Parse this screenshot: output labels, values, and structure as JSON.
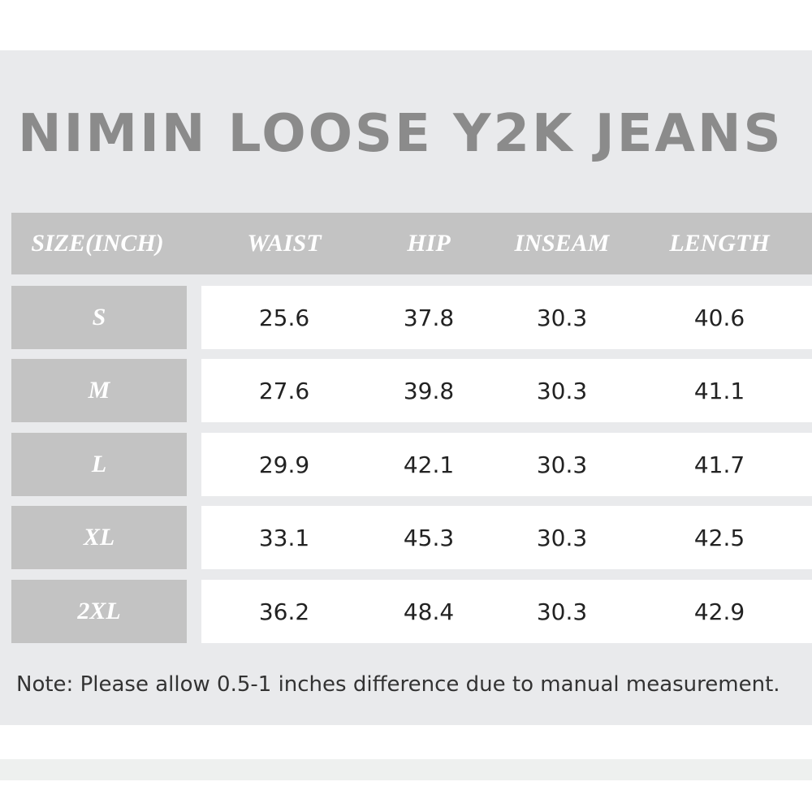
{
  "title": "NIMIN LOOSE Y2K JEANS",
  "table": {
    "header": [
      "SIZE(INCH)",
      "WAIST",
      "HIP",
      "INSEAM",
      "LENGTH"
    ],
    "rows": [
      [
        "S",
        "25.6",
        "37.8",
        "30.3",
        "40.6"
      ],
      [
        "M",
        "27.6",
        "39.8",
        "30.3",
        "41.1"
      ],
      [
        "L",
        "29.9",
        "42.1",
        "30.3",
        "41.7"
      ],
      [
        "XL",
        "33.1",
        "45.3",
        "30.3",
        "42.5"
      ],
      [
        "2XL",
        "36.2",
        "48.4",
        "30.3",
        "42.9"
      ]
    ]
  },
  "note": "Note: Please allow 0.5-1 inches difference due to manual measurement."
}
